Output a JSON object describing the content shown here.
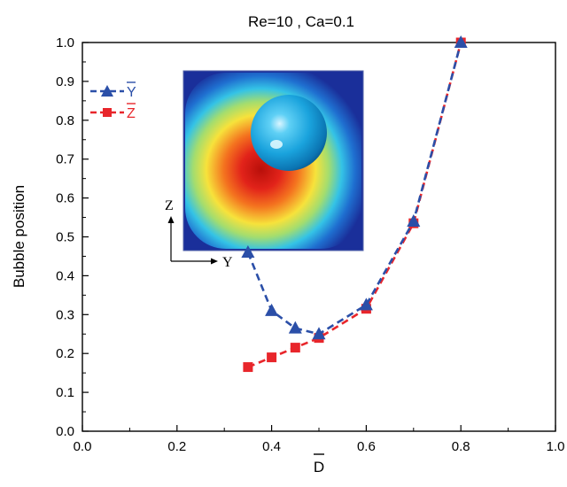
{
  "chart_data": {
    "type": "line",
    "title": "Re=10 , Ca=0.1",
    "xlabel": "D",
    "ylabel": "Bubble position",
    "xlim": [
      0.0,
      1.0
    ],
    "ylim": [
      0.0,
      1.0
    ],
    "xticks": [
      "0.0",
      "0.2",
      "0.4",
      "0.6",
      "0.8",
      "1.0"
    ],
    "yticks": [
      "0.0",
      "0.1",
      "0.2",
      "0.3",
      "0.4",
      "0.5",
      "0.6",
      "0.7",
      "0.8",
      "0.9",
      "1.0"
    ],
    "grid": false,
    "legend_position": "top-left",
    "series": [
      {
        "name": "Y",
        "marker": "triangle",
        "color": "#2b4fa8",
        "x": [
          0.35,
          0.4,
          0.45,
          0.5,
          0.6,
          0.7,
          0.8
        ],
        "y": [
          0.46,
          0.31,
          0.265,
          0.25,
          0.325,
          0.54,
          1.0
        ]
      },
      {
        "name": "Z",
        "marker": "square",
        "color": "#e8262b",
        "x": [
          0.35,
          0.4,
          0.45,
          0.5,
          0.6,
          0.7,
          0.8
        ],
        "y": [
          0.165,
          0.19,
          0.215,
          0.24,
          0.315,
          0.535,
          1.0
        ]
      }
    ],
    "inset": {
      "axis_z": "Z",
      "axis_y": "Y"
    }
  }
}
